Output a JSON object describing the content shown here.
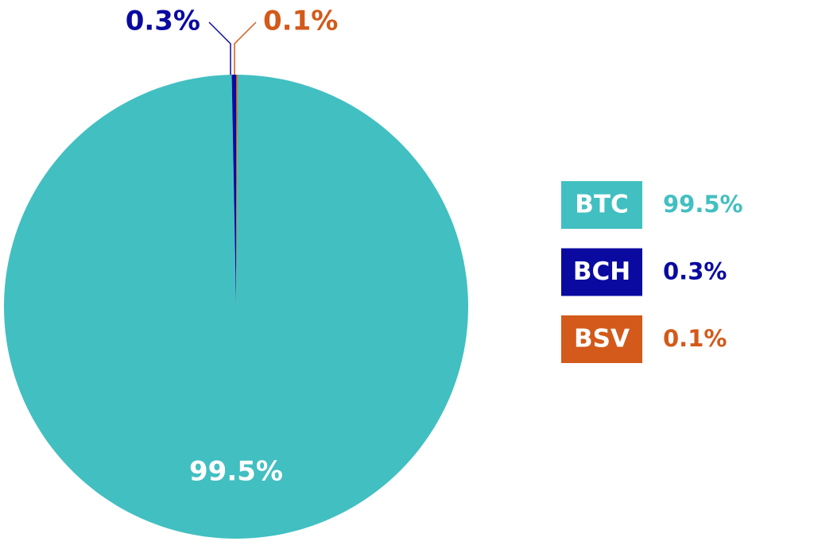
{
  "chart_data": {
    "type": "pie",
    "categories": [
      "BTC",
      "BCH",
      "BSV"
    ],
    "values": [
      99.5,
      0.3,
      0.1
    ],
    "value_labels": [
      "99.5%",
      "0.3%",
      "0.1%"
    ],
    "colors": [
      "#42bfc1",
      "#0a0aa0",
      "#d35a1a"
    ],
    "legend": "right"
  }
}
